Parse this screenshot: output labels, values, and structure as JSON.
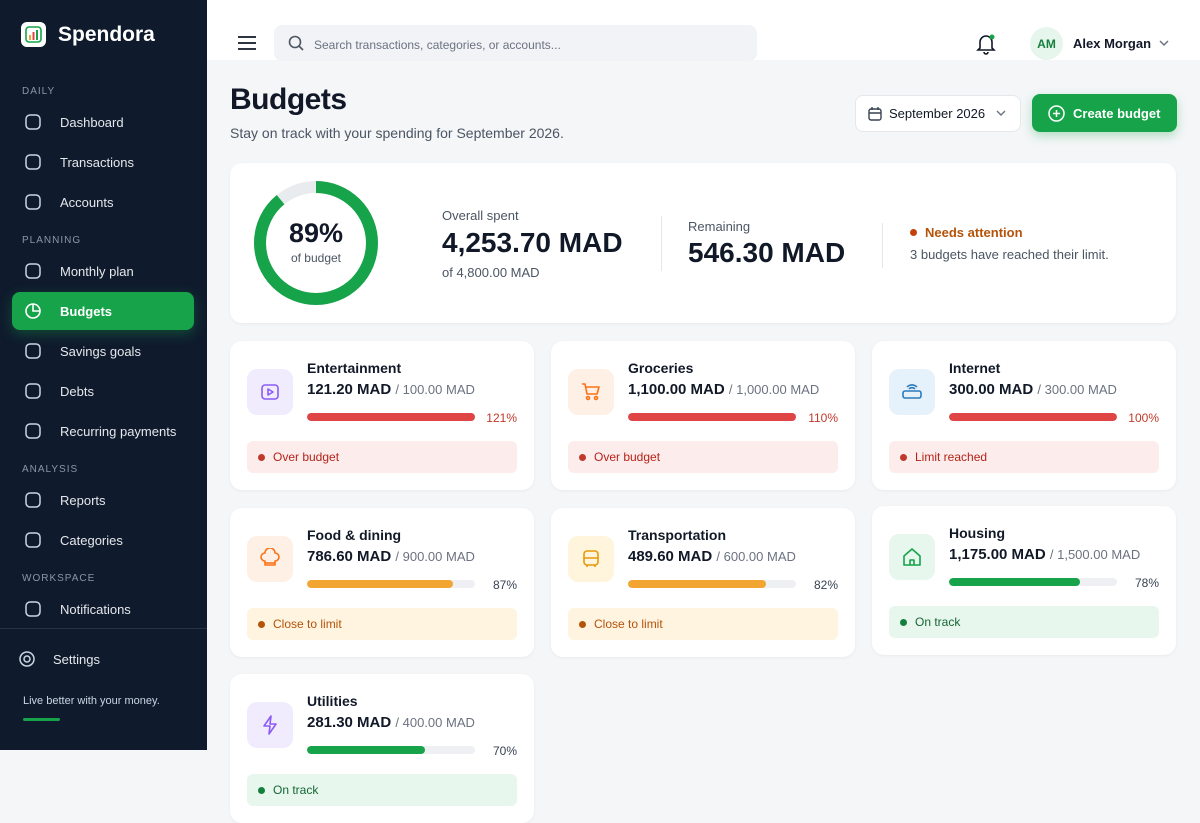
{
  "app": {
    "name": "Spendora",
    "tagline": "Live better with your money."
  },
  "sidebar": {
    "sections": [
      {
        "title": "DAILY",
        "items": [
          "Dashboard",
          "Transactions",
          "Accounts"
        ]
      },
      {
        "title": "PLANNING",
        "items": [
          "Monthly plan",
          "Budgets",
          "Savings goals",
          "Debts",
          "Recurring payments"
        ]
      },
      {
        "title": "ANALYSIS",
        "items": [
          "Reports",
          "Categories"
        ]
      },
      {
        "title": "WORKSPACE",
        "items": [
          "Notifications"
        ]
      }
    ],
    "active": "Budgets",
    "settings": "Settings"
  },
  "topbar": {
    "search_placeholder": "Search transactions, categories, or accounts...",
    "user_initials": "AM",
    "user_name": "Alex Morgan"
  },
  "header": {
    "title": "Budgets",
    "subtitle": "Stay on track with your spending for September 2026.",
    "period": "September 2026",
    "create_button": "Create budget"
  },
  "summary": {
    "percent": 89,
    "percent_label": "89%",
    "percent_caption": "of budget",
    "spent_label": "Overall spent",
    "spent": "4,253.70 MAD",
    "spent_of": "of 4,800.00 MAD",
    "remaining_label": "Remaining",
    "remaining": "546.30 MAD",
    "attention_title": "Needs attention",
    "attention_text": "3 budgets have reached their limit."
  },
  "budgets": [
    {
      "name": "Entertainment",
      "spent": "121.20 MAD",
      "limit": "/ 100.00 MAD",
      "percent": 121,
      "percent_label": "121%",
      "status": "Over budget",
      "level": "red",
      "icon": "play",
      "tint": "purple"
    },
    {
      "name": "Groceries",
      "spent": "1,100.00 MAD",
      "limit": "/ 1,000.00 MAD",
      "percent": 110,
      "percent_label": "110%",
      "status": "Over budget",
      "level": "red",
      "icon": "cart",
      "tint": "orange"
    },
    {
      "name": "Internet",
      "spent": "300.00 MAD",
      "limit": "/ 300.00 MAD",
      "percent": 100,
      "percent_label": "100%",
      "status": "Limit reached",
      "level": "red",
      "icon": "router",
      "tint": "blue"
    },
    {
      "name": "Food & dining",
      "spent": "786.60 MAD",
      "limit": "/ 900.00 MAD",
      "percent": 87,
      "percent_label": "87%",
      "status": "Close to limit",
      "level": "orange",
      "icon": "chef",
      "tint": "orange"
    },
    {
      "name": "Transportation",
      "spent": "489.60 MAD",
      "limit": "/ 600.00 MAD",
      "percent": 82,
      "percent_label": "82%",
      "status": "Close to limit",
      "level": "orange",
      "icon": "bus",
      "tint": "yellow"
    },
    {
      "name": "Housing",
      "spent": "1,175.00 MAD",
      "limit": "/ 1,500.00 MAD",
      "percent": 78,
      "percent_label": "78%",
      "status": "On track",
      "level": "green",
      "icon": "home",
      "tint": "green"
    },
    {
      "name": "Utilities",
      "spent": "281.30 MAD",
      "limit": "/ 400.00 MAD",
      "percent": 70,
      "percent_label": "70%",
      "status": "On track",
      "level": "green",
      "icon": "bolt",
      "tint": "purple"
    }
  ]
}
